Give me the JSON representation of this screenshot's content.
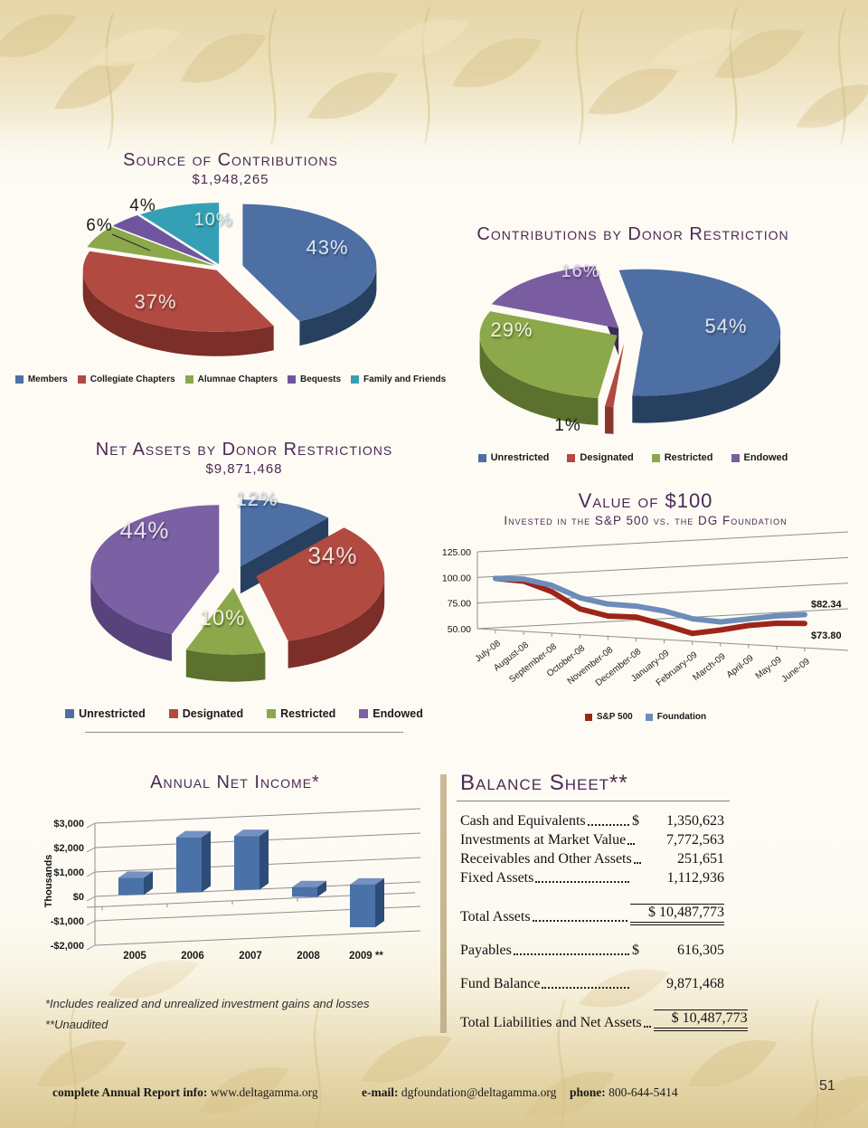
{
  "page_number": "51",
  "chart_data": [
    {
      "key": "source",
      "type": "pie",
      "title": "Source of Contributions",
      "subtitle": "$1,948,265",
      "slices": [
        {
          "label": "Members",
          "value": 43,
          "text": "43%",
          "color": "#4d6fa4",
          "dark": "#27405f"
        },
        {
          "label": "Collegiate Chapters",
          "value": 37,
          "text": "37%",
          "color": "#b14a41",
          "dark": "#7c2e28"
        },
        {
          "label": "Alumnae Chapters",
          "value": 6,
          "text": "6%",
          "color": "#8ba84a",
          "dark": "#5b712d"
        },
        {
          "label": "Bequests",
          "value": 4,
          "text": "4%",
          "color": "#6f55a0",
          "dark": "#47336c"
        },
        {
          "label": "Family and Friends",
          "value": 10,
          "text": "10%",
          "color": "#35a0b5",
          "dark": "#1f6e80"
        }
      ]
    },
    {
      "key": "donor",
      "type": "pie",
      "title": "Contributions by Donor Restriction",
      "slices": [
        {
          "label": "Unrestricted",
          "value": 54,
          "text": "54%",
          "color": "#4d6fa4",
          "dark": "#27405f"
        },
        {
          "label": "Designated",
          "value": 1,
          "text": "1%",
          "color": "#b14a41",
          "dark": "#8c352e"
        },
        {
          "label": "Restricted",
          "value": 29,
          "text": "29%",
          "color": "#8ba84a",
          "dark": "#5b712d"
        },
        {
          "label": "Endowed",
          "value": 16,
          "text": "16%",
          "color": "#7a5da1",
          "dark": "#3e2a58"
        }
      ]
    },
    {
      "key": "netassets",
      "type": "pie",
      "title": "Net Assets by Donor Restrictions",
      "subtitle": "$9,871,468",
      "slices": [
        {
          "label": "Unrestricted",
          "value": 12,
          "text": "12%",
          "color": "#4d6fa4",
          "dark": "#27405f"
        },
        {
          "label": "Designated",
          "value": 34,
          "text": "34%",
          "color": "#b14a41",
          "dark": "#7c2e28"
        },
        {
          "label": "Restricted",
          "value": 10,
          "text": "10%",
          "color": "#8ba84a",
          "dark": "#5b712d"
        },
        {
          "label": "Endowed",
          "value": 44,
          "text": "44%",
          "color": "#7b61a3",
          "dark": "#59437c"
        }
      ]
    },
    {
      "key": "value100",
      "type": "line",
      "title": "Value of $100",
      "subtitle": "Invested in the S&P 500 vs. the DG Foundation",
      "x": [
        "July-08",
        "August-08",
        "September-08",
        "October-08",
        "November-08",
        "December-08",
        "January-09",
        "February-09",
        "March-09",
        "April-09",
        "May-09",
        "June-09"
      ],
      "ylim": [
        50,
        125
      ],
      "y_ticks": [
        125,
        100,
        75,
        50
      ],
      "y_tick_labels": [
        "125.00",
        "100.00",
        "75.00",
        "50.00"
      ],
      "grid": true,
      "legend_position": "bottom",
      "series": [
        {
          "name": "S&P 500",
          "color": "#9e2419",
          "values": [
            100,
            99,
            90.3,
            75.2,
            69.8,
            70.4,
            64.5,
            57.6,
            62.6,
            68.6,
            72.4,
            73.8
          ],
          "end_label": "$73.80"
        },
        {
          "name": "Foundation",
          "color": "#6d8cba",
          "values": [
            100,
            101,
            96.5,
            86,
            81.5,
            81,
            78,
            72,
            70.5,
            75,
            79.5,
            82.34
          ],
          "end_label": "$82.34"
        }
      ]
    },
    {
      "key": "income",
      "type": "bar",
      "title": "Annual Net Income*",
      "ylabel": "Thousands",
      "categories": [
        "2005",
        "2006",
        "2007",
        "2008",
        "2009 **"
      ],
      "values": [
        700,
        2250,
        2200,
        -400,
        -1750
      ],
      "ylim": [
        -2000,
        3000
      ],
      "y_ticks": [
        3000,
        2000,
        1000,
        0,
        -1000,
        -2000
      ],
      "y_tick_labels": [
        "$3,000",
        "$2,000",
        "$1,000",
        "$0",
        "-$1,000",
        "-$2,000"
      ],
      "color": "#4a71a8",
      "color_dark": "#2d4c78",
      "color_top": "#7591c2"
    }
  ],
  "balance": {
    "title": "Balance Sheet**",
    "rows": [
      {
        "label": "Cash and Equivalents",
        "currency": "$",
        "amount": "1,350,623"
      },
      {
        "label": "Investments at Market Value",
        "amount": "7,772,563"
      },
      {
        "label": "Receivables and Other Assets",
        "amount": "251,651"
      },
      {
        "label": "Fixed Assets",
        "amount": "1,112,936"
      },
      {
        "label": "Total Assets",
        "currency": "$",
        "amount": "10,487,773",
        "total": true,
        "gap": true
      },
      {
        "label": "Payables",
        "currency": "$",
        "amount": "616,305",
        "gap": true
      },
      {
        "label": "Fund Balance",
        "amount": "9,871,468",
        "gap": true
      },
      {
        "label": "Total Liabilities and Net Assets",
        "currency": "$",
        "amount": "10,487,773",
        "total": true,
        "gap": true
      }
    ]
  },
  "footnotes": [
    "*Includes realized and unrealized investment gains and losses",
    "**Unaudited"
  ],
  "footer": {
    "info_label": "complete Annual Report info:",
    "info_value": "www.deltagamma.org",
    "email_label": "e-mail:",
    "email_value": "dgfoundation@deltagamma.org",
    "phone_label": "phone:",
    "phone_value": "800-644-5414"
  },
  "colors": {
    "title": "#4b2a55",
    "accent_tan": "#c9ba97"
  }
}
